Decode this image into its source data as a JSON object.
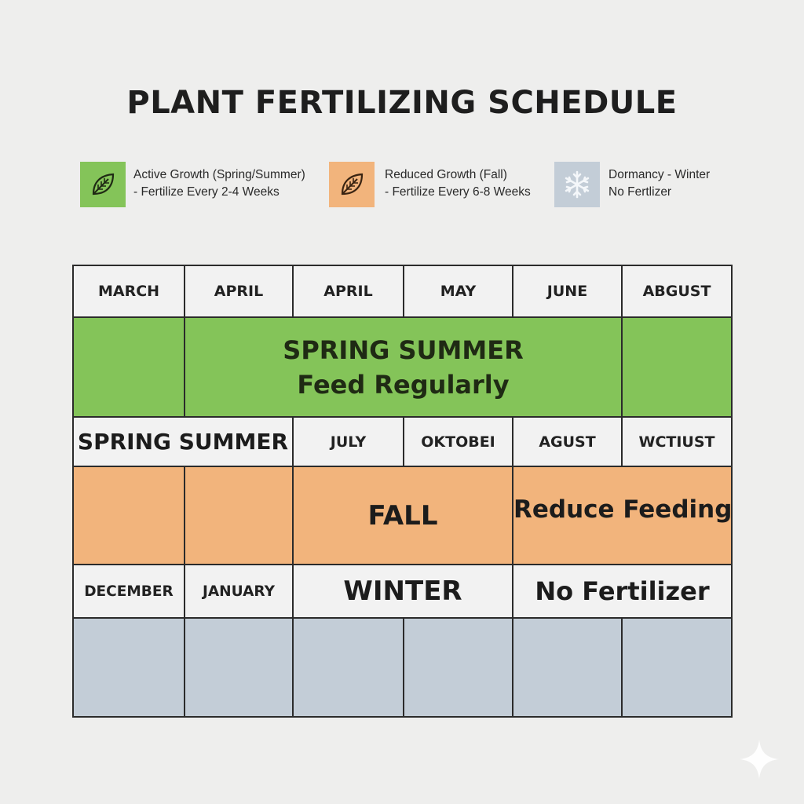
{
  "title": "PLANT FERTILIZING SCHEDULE",
  "legend": [
    {
      "line1": "Active Growth (Spring/Summer)",
      "line2": "- Fertilize Every 2-4 Weeks",
      "icon": "leaf-icon",
      "color": "#84c459"
    },
    {
      "line1": "Reduced Growth (Fall)",
      "line2": "- Fertilize Every 6-8 Weeks",
      "icon": "leaf-icon",
      "color": "#f2b47c"
    },
    {
      "line1": "Dormancy - Winter",
      "line2": "No Fertlizer",
      "icon": "snowflake-icon",
      "color": "#c3cdd7"
    }
  ],
  "grid": {
    "row1": [
      "MARCH",
      "APRIL",
      "APRIL",
      "MAY",
      "JUNE",
      "ABGUST"
    ],
    "green_band": {
      "line1": "SPRING SUMMER",
      "line2": "Feed Regularly"
    },
    "row3": {
      "label": "SPRING SUMMER",
      "months": [
        "JULY",
        "OKTOBEI",
        "AGUST",
        "WCTIUST"
      ]
    },
    "orange_band": {
      "season": "FALL",
      "note": "Reduce Feeding"
    },
    "row5": {
      "months": [
        "DECEMBER",
        "JANUARY"
      ],
      "season": "WINTER",
      "note": "No Fertilizer"
    }
  },
  "colors": {
    "active": "#84c459",
    "reduced": "#f2b47c",
    "dormant": "#c3cdd7",
    "background": "#eeeeed"
  }
}
